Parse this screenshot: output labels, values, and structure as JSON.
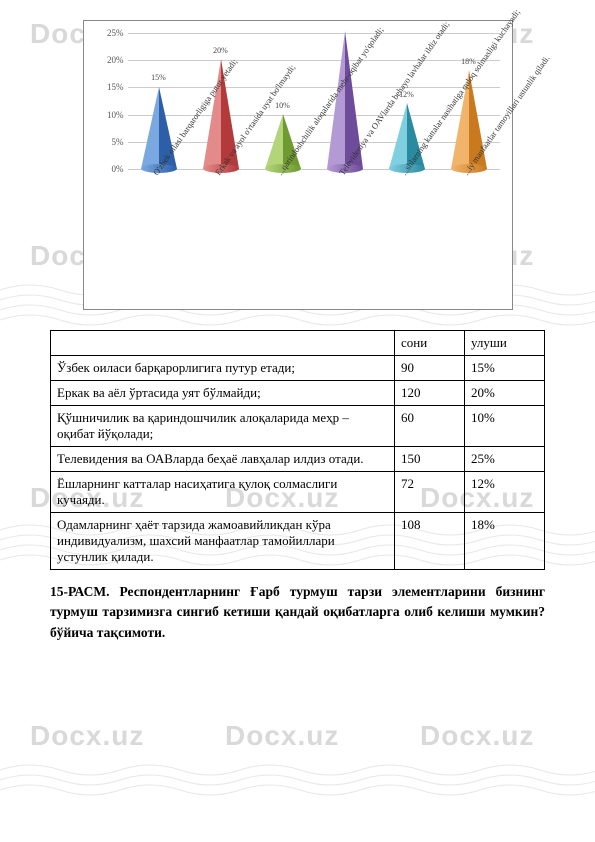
{
  "watermark": {
    "text": "Docx.uz",
    "color": "#d9d9d9"
  },
  "chart": {
    "type": "cone-bar",
    "y_ticks": [
      "0%",
      "5%",
      "10%",
      "15%",
      "20%",
      "25%"
    ],
    "ylim": [
      0,
      25
    ],
    "grid_color": "#cccccc",
    "series": [
      {
        "value": 15,
        "label": "15%",
        "color_light": "#7aa8e0",
        "color_dark": "#2d5fa8",
        "xlabel": "O'zbek oilasi barqarorligiga putur yetadi;"
      },
      {
        "value": 20,
        "label": "20%",
        "color_light": "#e38a8a",
        "color_dark": "#b23a3a",
        "xlabel": "Erkak va ayol o'rtasida uyat bo'lmaydi;"
      },
      {
        "value": 10,
        "label": "10%",
        "color_light": "#b4d47a",
        "color_dark": "#6e9a2f",
        "xlabel": "...qarindoshchilik aloqalarida mehr-oqibat yo'qoladi;"
      },
      {
        "value": 25,
        "label": "",
        "color_light": "#b49ad4",
        "color_dark": "#6e4c9a",
        "xlabel": "Televideniya va OAVlarda behayo lavhalar ildiz otadi;"
      },
      {
        "value": 12,
        "label": "12%",
        "color_light": "#7ecfe0",
        "color_dark": "#2a8aa0",
        "xlabel": "...shlarning kattalar nasihatiga quloq solmasligi kuchayadi;"
      },
      {
        "value": 18,
        "label": "18%",
        "color_light": "#f2b36b",
        "color_dark": "#c97a1f",
        "xlabel": "...iy manfaatlar tamoyillari ustunlik qiladi."
      }
    ]
  },
  "table": {
    "headers": {
      "col1": "сони",
      "col2": "улуши"
    },
    "rows": [
      {
        "label": "Ўзбек оиласи барқарорлигига путур етади;",
        "soni": "90",
        "ulushi": "15%"
      },
      {
        "label": "Еркак ва аёл ўртасида уят бўлмайди;",
        "soni": "120",
        "ulushi": "20%"
      },
      {
        "label": "Қўшничилик ва қариндошчилик алоқаларида меҳр – оқибат йўқолади;",
        "soni": "60",
        "ulushi": "10%"
      },
      {
        "label": "Телевидения ва ОАВларда беҳаё лавҳалар илдиз отади.",
        "soni": "150",
        "ulushi": "25%"
      },
      {
        "label": "Ёшларнинг катталар насиҳатига қулоқ солмаслиги кучаяди.",
        "soni": "72",
        "ulushi": "12%"
      },
      {
        "label": "Одамларнинг ҳаёт тарзида жамоавийликдан кўра индивидуализм, шахсий манфаатлар тамойиллари устунлик қилади.",
        "soni": "108",
        "ulushi": "18%"
      }
    ]
  },
  "caption": {
    "label": "15-РАСМ.",
    "text": "Респондентларнинг Ғарб турмуш тарзи элементларини бизнинг турмуш тарзимизга сингиб кетиши қандай оқибатларга олиб келиши мумкин? бўйича тақсимоти."
  }
}
